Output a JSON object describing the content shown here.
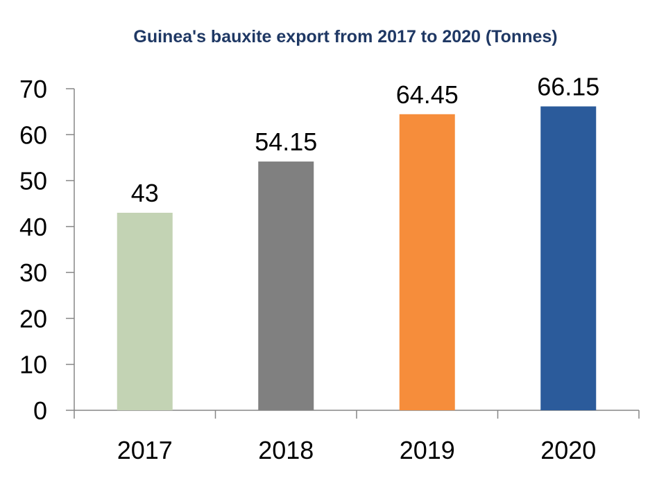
{
  "chart_data": {
    "type": "bar",
    "title": "Guinea's bauxite export from 2017 to 2020 (Tonnes)",
    "categories": [
      "2017",
      "2018",
      "2019",
      "2020"
    ],
    "values": [
      43,
      54.15,
      64.45,
      66.15
    ],
    "data_labels": [
      "43",
      "54.15",
      "64.45",
      "66.15"
    ],
    "bar_colors": [
      "#c3d3b4",
      "#808080",
      "#f68d3b",
      "#2b5b9b"
    ],
    "title_color": "#1f3864",
    "yticks": [
      0,
      10,
      20,
      30,
      40,
      50,
      60,
      70
    ],
    "ylim": [
      0,
      70
    ],
    "xlabel": "",
    "ylabel": "",
    "grid": false,
    "legend": "none"
  }
}
